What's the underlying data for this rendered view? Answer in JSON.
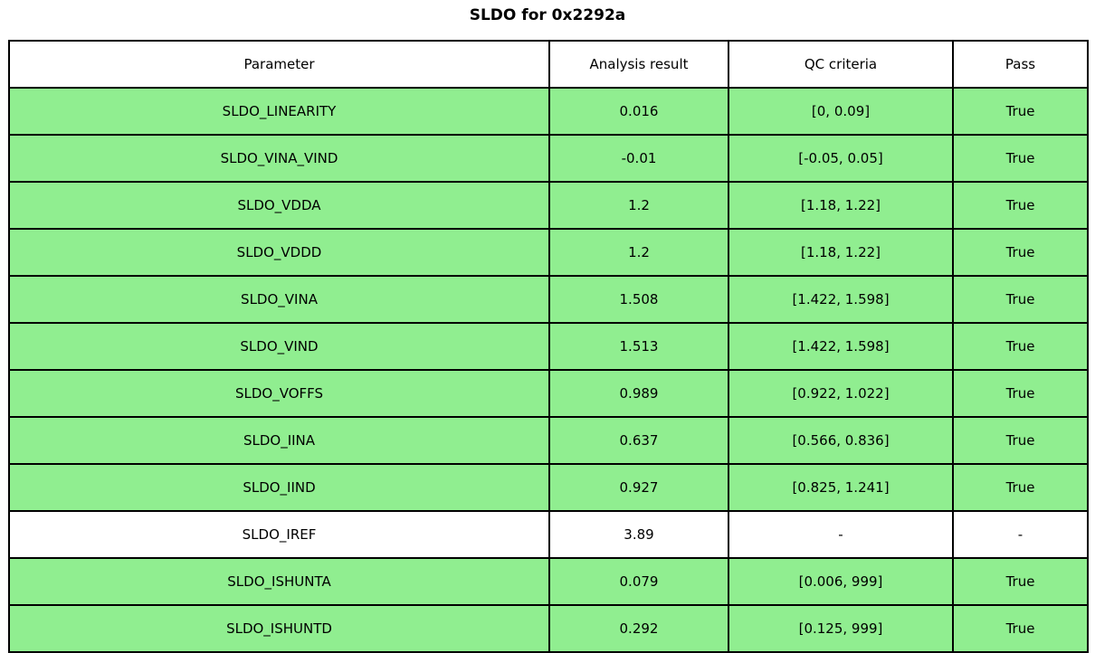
{
  "title": "SLDO for 0x2292a",
  "chart_data": {
    "type": "table",
    "title": "SLDO for 0x2292a",
    "columns": [
      "Parameter",
      "Analysis result",
      "QC criteria",
      "Pass"
    ],
    "rows": [
      {
        "parameter": "SLDO_LINEARITY",
        "result": "0.016",
        "criteria": "[0, 0.09]",
        "pass": "True",
        "highlighted": true
      },
      {
        "parameter": "SLDO_VINA_VIND",
        "result": "-0.01",
        "criteria": "[-0.05, 0.05]",
        "pass": "True",
        "highlighted": true
      },
      {
        "parameter": "SLDO_VDDA",
        "result": "1.2",
        "criteria": "[1.18, 1.22]",
        "pass": "True",
        "highlighted": true
      },
      {
        "parameter": "SLDO_VDDD",
        "result": "1.2",
        "criteria": "[1.18, 1.22]",
        "pass": "True",
        "highlighted": true
      },
      {
        "parameter": "SLDO_VINA",
        "result": "1.508",
        "criteria": "[1.422, 1.598]",
        "pass": "True",
        "highlighted": true
      },
      {
        "parameter": "SLDO_VIND",
        "result": "1.513",
        "criteria": "[1.422, 1.598]",
        "pass": "True",
        "highlighted": true
      },
      {
        "parameter": "SLDO_VOFFS",
        "result": "0.989",
        "criteria": "[0.922, 1.022]",
        "pass": "True",
        "highlighted": true
      },
      {
        "parameter": "SLDO_IINA",
        "result": "0.637",
        "criteria": "[0.566, 0.836]",
        "pass": "True",
        "highlighted": true
      },
      {
        "parameter": "SLDO_IIND",
        "result": "0.927",
        "criteria": "[0.825, 1.241]",
        "pass": "True",
        "highlighted": true
      },
      {
        "parameter": "SLDO_IREF",
        "result": "3.89",
        "criteria": "-",
        "pass": "-",
        "highlighted": false
      },
      {
        "parameter": "SLDO_ISHUNTA",
        "result": "0.079",
        "criteria": "[0.006, 999]",
        "pass": "True",
        "highlighted": true
      },
      {
        "parameter": "SLDO_ISHUNTD",
        "result": "0.292",
        "criteria": "[0.125, 999]",
        "pass": "True",
        "highlighted": true
      }
    ],
    "colors": {
      "pass_row_bg": "#90EE90",
      "neutral_row_bg": "#FFFFFF",
      "border": "#000000",
      "text": "#000000"
    },
    "layout": {
      "legend": "none",
      "grid": "table-borders"
    }
  }
}
